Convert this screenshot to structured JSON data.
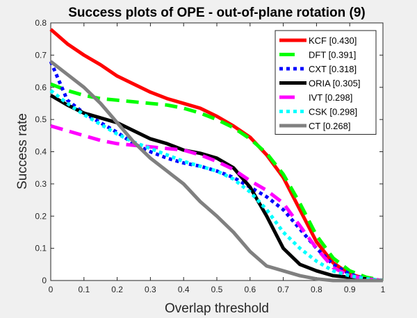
{
  "chart_data": {
    "type": "line",
    "title": "Success plots of OPE - out-of-plane rotation (9)",
    "xlabel": "Overlap threshold",
    "ylabel": "Success rate",
    "xlim": [
      0,
      1
    ],
    "ylim": [
      0,
      0.8
    ],
    "xticks": [
      "0",
      "0.1",
      "0.2",
      "0.3",
      "0.4",
      "0.5",
      "0.6",
      "0.7",
      "0.8",
      "0.9",
      "1"
    ],
    "yticks": [
      "0",
      "0.1",
      "0.2",
      "0.3",
      "0.4",
      "0.5",
      "0.6",
      "0.7",
      "0.8"
    ],
    "legend_position": "top-right",
    "x": [
      0,
      0.05,
      0.1,
      0.15,
      0.2,
      0.25,
      0.3,
      0.35,
      0.4,
      0.45,
      0.5,
      0.55,
      0.6,
      0.65,
      0.7,
      0.75,
      0.8,
      0.85,
      0.9,
      0.95,
      1
    ],
    "series": [
      {
        "name": "KCF [0.430]",
        "color": "#ff0000",
        "style": "solid",
        "values": [
          0.78,
          0.735,
          0.7,
          0.67,
          0.635,
          0.61,
          0.585,
          0.565,
          0.55,
          0.535,
          0.51,
          0.48,
          0.445,
          0.39,
          0.32,
          0.22,
          0.12,
          0.055,
          0.02,
          0.005,
          0
        ]
      },
      {
        "name": "DFT [0.391]",
        "color": "#00ff00",
        "style": "dashed",
        "values": [
          0.61,
          0.59,
          0.575,
          0.565,
          0.56,
          0.555,
          0.55,
          0.545,
          0.535,
          0.52,
          0.5,
          0.475,
          0.44,
          0.395,
          0.33,
          0.24,
          0.14,
          0.07,
          0.03,
          0.01,
          0
        ]
      },
      {
        "name": "CXT [0.318]",
        "color": "#0000ff",
        "style": "dotted",
        "values": [
          0.68,
          0.56,
          0.52,
          0.49,
          0.46,
          0.425,
          0.4,
          0.38,
          0.365,
          0.355,
          0.34,
          0.32,
          0.29,
          0.26,
          0.22,
          0.16,
          0.1,
          0.05,
          0.02,
          0.005,
          0
        ]
      },
      {
        "name": "ORIA [0.305]",
        "color": "#000000",
        "style": "solid",
        "values": [
          0.575,
          0.545,
          0.52,
          0.505,
          0.49,
          0.465,
          0.44,
          0.425,
          0.405,
          0.395,
          0.38,
          0.35,
          0.29,
          0.2,
          0.1,
          0.05,
          0.03,
          0.015,
          0.01,
          0.005,
          0
        ]
      },
      {
        "name": "IVT [0.298]",
        "color": "#ff00ff",
        "style": "dashed",
        "values": [
          0.48,
          0.465,
          0.45,
          0.435,
          0.425,
          0.42,
          0.415,
          0.41,
          0.405,
          0.39,
          0.37,
          0.345,
          0.31,
          0.28,
          0.24,
          0.17,
          0.1,
          0.04,
          0.015,
          0.005,
          0
        ]
      },
      {
        "name": "CSK [0.298]",
        "color": "#00ffff",
        "style": "dotted",
        "values": [
          0.59,
          0.55,
          0.515,
          0.485,
          0.455,
          0.43,
          0.41,
          0.39,
          0.37,
          0.355,
          0.34,
          0.315,
          0.275,
          0.22,
          0.15,
          0.1,
          0.06,
          0.03,
          0.015,
          0.005,
          0
        ]
      },
      {
        "name": "CT [0.268]",
        "color": "#808080",
        "style": "solid",
        "values": [
          0.68,
          0.64,
          0.6,
          0.55,
          0.49,
          0.43,
          0.38,
          0.34,
          0.3,
          0.245,
          0.2,
          0.15,
          0.09,
          0.045,
          0.03,
          0.015,
          0.005,
          0,
          0,
          0,
          0
        ]
      }
    ]
  }
}
